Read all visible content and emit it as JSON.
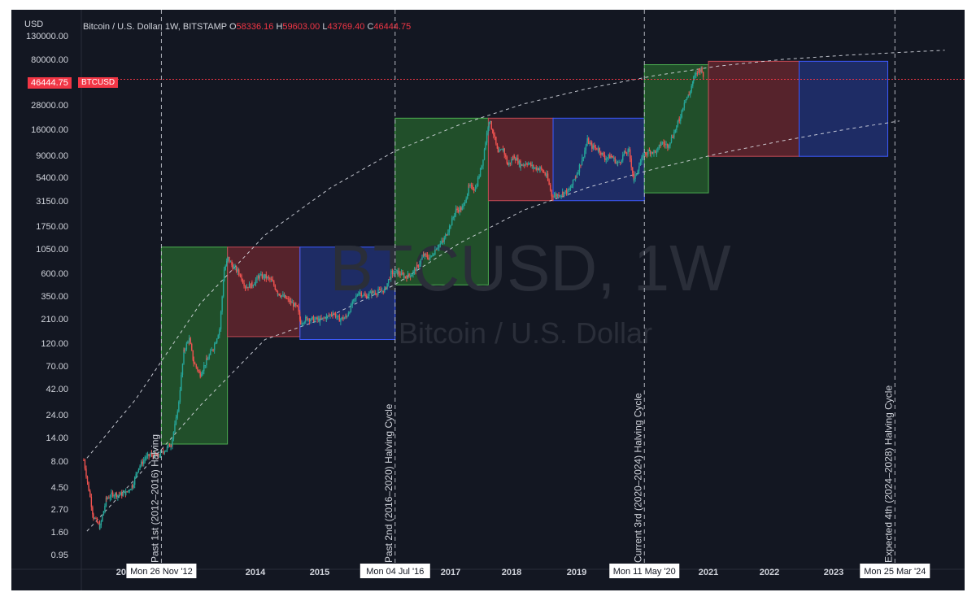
{
  "header": {
    "currency_label": "USD",
    "symbol_desc": "Bitcoin / U.S. Dollar, 1W, BITSTAMP",
    "open_label": "O",
    "open": "58336.16",
    "high_label": "H",
    "high": "59603.00",
    "low_label": "L",
    "low": "43769.40",
    "close_label": "C",
    "close": "46444.75"
  },
  "price_badge": {
    "price": "46444.75",
    "ticker": "BTCUSD"
  },
  "watermark": {
    "title": "BTCUSD, 1W",
    "subtitle": "Bitcoin / U.S. Dollar"
  },
  "colors": {
    "background": "#131722",
    "up": "#26a69a",
    "down": "#ef5350",
    "green_box": "#2e7d32",
    "red_box": "#8e2d34",
    "blue_box": "#283e9c",
    "price_line": "#f23645"
  },
  "chart_data": {
    "type": "candlestick",
    "y_scale": "log",
    "ylim": [
      0.95,
      130000
    ],
    "y_ticks": [
      "130000.00",
      "80000.00",
      "28000.00",
      "16000.00",
      "9000.00",
      "5400.00",
      "3150.00",
      "1750.00",
      "1050.00",
      "600.00",
      "350.00",
      "210.00",
      "120.00",
      "70.00",
      "42.00",
      "24.00",
      "14.00",
      "8.00",
      "4.50",
      "2.70",
      "1.60",
      "0.95"
    ],
    "x_ticks": [
      "2012",
      "2014",
      "2015",
      "2016",
      "2017",
      "2018",
      "2019",
      "2021",
      "2022",
      "2023"
    ],
    "current_price": 46444.75,
    "halving_lines": [
      {
        "date_label": "Mon 26 Nov '12",
        "text": "Past 1st (2012–2016) Halving"
      },
      {
        "date_label": "Mon 04 Jul '16",
        "text": "Past 2nd (2016–2020) Halving Cycle"
      },
      {
        "date_label": "Mon 11 May '20",
        "text": "Current 3rd (2020–2024) Halving Cycle"
      },
      {
        "date_label": "Mon 25 Mar '24",
        "text": "Expected 4th (2024–2028) Halving Cycle"
      }
    ],
    "cycle_boxes": [
      {
        "phase": "green",
        "start": 2012.9,
        "end": 2013.92,
        "low": 15,
        "high": 1150
      },
      {
        "phase": "red",
        "start": 2013.92,
        "end": 2015.04,
        "low": 160,
        "high": 1150
      },
      {
        "phase": "blue",
        "start": 2015.04,
        "end": 2016.51,
        "low": 150,
        "high": 1150
      },
      {
        "phase": "green",
        "start": 2016.51,
        "end": 2017.95,
        "low": 500,
        "high": 19700
      },
      {
        "phase": "red",
        "start": 2017.95,
        "end": 2018.95,
        "low": 3200,
        "high": 19700
      },
      {
        "phase": "blue",
        "start": 2018.95,
        "end": 2020.36,
        "low": 3200,
        "high": 19700
      },
      {
        "phase": "green",
        "start": 2020.36,
        "end": 2021.35,
        "low": 3800,
        "high": 64000
      },
      {
        "phase": "red",
        "start": 2021.35,
        "end": 2022.75,
        "low": 8500,
        "high": 69000
      },
      {
        "phase": "blue",
        "start": 2022.75,
        "end": 2024.12,
        "low": 8500,
        "high": 69000
      }
    ],
    "trend_curves": [
      {
        "name": "upper",
        "points": [
          [
            2011.75,
            11
          ],
          [
            2012.5,
            40
          ],
          [
            2013.5,
            330
          ],
          [
            2014.5,
            1500
          ],
          [
            2015.5,
            4200
          ],
          [
            2016.5,
            9500
          ],
          [
            2017.5,
            17000
          ],
          [
            2018.5,
            27000
          ],
          [
            2019.5,
            38000
          ],
          [
            2020.5,
            50000
          ],
          [
            2021.5,
            62000
          ],
          [
            2022.5,
            72000
          ],
          [
            2023.5,
            79000
          ],
          [
            2024.5,
            85000
          ],
          [
            2025.0,
            88000
          ]
        ]
      },
      {
        "name": "lower",
        "points": [
          [
            2011.75,
            2.2
          ],
          [
            2012.5,
            7
          ],
          [
            2013.5,
            35
          ],
          [
            2014.5,
            150
          ],
          [
            2015.5,
            250
          ],
          [
            2016.5,
            500
          ],
          [
            2017.5,
            1250
          ],
          [
            2018.5,
            2600
          ],
          [
            2019.5,
            4300
          ],
          [
            2020.5,
            6400
          ],
          [
            2021.5,
            9000
          ],
          [
            2022.5,
            12000
          ],
          [
            2023.5,
            15500
          ],
          [
            2024.3,
            18500
          ]
        ]
      }
    ],
    "price_path": [
      [
        2011.7,
        10.5
      ],
      [
        2011.78,
        5.5
      ],
      [
        2011.85,
        3.0
      ],
      [
        2011.95,
        2.4
      ],
      [
        2012.05,
        4.5
      ],
      [
        2012.15,
        5.0
      ],
      [
        2012.25,
        4.9
      ],
      [
        2012.35,
        5.1
      ],
      [
        2012.45,
        6.0
      ],
      [
        2012.55,
        9.0
      ],
      [
        2012.65,
        11.0
      ],
      [
        2012.75,
        12.0
      ],
      [
        2012.85,
        11.5
      ],
      [
        2012.95,
        13.0
      ],
      [
        2013.05,
        15.0
      ],
      [
        2013.15,
        30.0
      ],
      [
        2013.25,
        120.0
      ],
      [
        2013.33,
        150.0
      ],
      [
        2013.4,
        90.0
      ],
      [
        2013.5,
        70.0
      ],
      [
        2013.6,
        95.0
      ],
      [
        2013.7,
        125.0
      ],
      [
        2013.8,
        190.0
      ],
      [
        2013.87,
        700.0
      ],
      [
        2013.93,
        900.0
      ],
      [
        2014.0,
        750.0
      ],
      [
        2014.1,
        650.0
      ],
      [
        2014.2,
        480.0
      ],
      [
        2014.3,
        500.0
      ],
      [
        2014.4,
        600.0
      ],
      [
        2014.5,
        600.0
      ],
      [
        2014.6,
        550.0
      ],
      [
        2014.7,
        420.0
      ],
      [
        2014.8,
        380.0
      ],
      [
        2014.9,
        340.0
      ],
      [
        2015.0,
        300.0
      ],
      [
        2015.05,
        220.0
      ],
      [
        2015.15,
        240.0
      ],
      [
        2015.25,
        235.0
      ],
      [
        2015.35,
        230.0
      ],
      [
        2015.45,
        245.0
      ],
      [
        2015.55,
        270.0
      ],
      [
        2015.65,
        235.0
      ],
      [
        2015.75,
        245.0
      ],
      [
        2015.85,
        330.0
      ],
      [
        2015.95,
        430.0
      ],
      [
        2016.05,
        390.0
      ],
      [
        2016.15,
        420.0
      ],
      [
        2016.25,
        430.0
      ],
      [
        2016.35,
        450.0
      ],
      [
        2016.45,
        650.0
      ],
      [
        2016.55,
        660.0
      ],
      [
        2016.65,
        600.0
      ],
      [
        2016.75,
        620.0
      ],
      [
        2016.85,
        740.0
      ],
      [
        2016.95,
        960.0
      ],
      [
        2017.05,
        900.0
      ],
      [
        2017.15,
        1150.0
      ],
      [
        2017.25,
        1300.0
      ],
      [
        2017.35,
        1800.0
      ],
      [
        2017.45,
        2600.0
      ],
      [
        2017.55,
        2700.0
      ],
      [
        2017.65,
        4300.0
      ],
      [
        2017.75,
        4200.0
      ],
      [
        2017.85,
        7000.0
      ],
      [
        2017.96,
        19000.0
      ],
      [
        2018.03,
        14000.0
      ],
      [
        2018.1,
        9000.0
      ],
      [
        2018.18,
        10000.0
      ],
      [
        2018.25,
        7000.0
      ],
      [
        2018.35,
        8500.0
      ],
      [
        2018.45,
        7000.0
      ],
      [
        2018.55,
        7400.0
      ],
      [
        2018.65,
        6600.0
      ],
      [
        2018.75,
        6500.0
      ],
      [
        2018.85,
        5500.0
      ],
      [
        2018.93,
        3600.0
      ],
      [
        2019.0,
        3600.0
      ],
      [
        2019.1,
        3800.0
      ],
      [
        2019.2,
        4000.0
      ],
      [
        2019.3,
        5500.0
      ],
      [
        2019.4,
        8000.0
      ],
      [
        2019.48,
        12000.0
      ],
      [
        2019.55,
        10500.0
      ],
      [
        2019.65,
        10000.0
      ],
      [
        2019.75,
        8200.0
      ],
      [
        2019.85,
        8500.0
      ],
      [
        2019.95,
        7200.0
      ],
      [
        2020.05,
        9000.0
      ],
      [
        2020.12,
        9500.0
      ],
      [
        2020.2,
        5000.0
      ],
      [
        2020.28,
        7000.0
      ],
      [
        2020.36,
        9000.0
      ],
      [
        2020.45,
        9500.0
      ],
      [
        2020.55,
        9300.0
      ],
      [
        2020.62,
        11500.0
      ],
      [
        2020.72,
        10800.0
      ],
      [
        2020.8,
        13500.0
      ],
      [
        2020.9,
        19000.0
      ],
      [
        2020.98,
        29000.0
      ],
      [
        2021.05,
        33000.0
      ],
      [
        2021.12,
        47000.0
      ],
      [
        2021.2,
        57000.0
      ],
      [
        2021.25,
        58000.0
      ],
      [
        2021.28,
        46444.75
      ]
    ]
  }
}
